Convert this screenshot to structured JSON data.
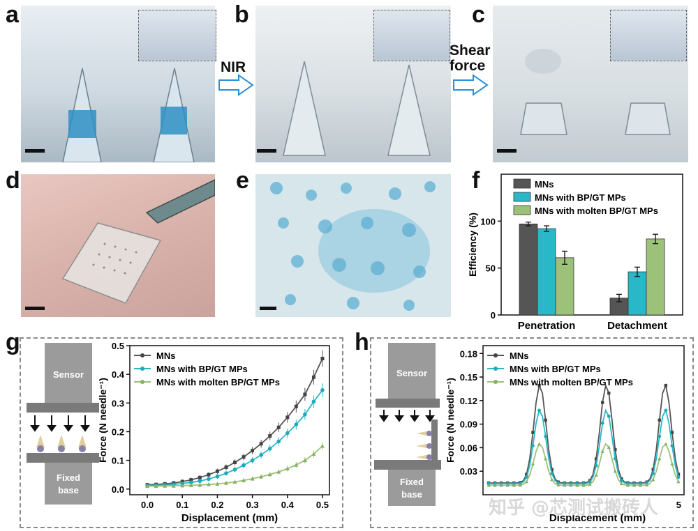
{
  "panels": {
    "a": "a",
    "b": "b",
    "c": "c",
    "d": "d",
    "e": "e",
    "f": "f",
    "g": "g",
    "h": "h"
  },
  "arrows": {
    "nir": "NIR",
    "shear_line1": "Shear",
    "shear_line2": "force"
  },
  "schematic": {
    "sensor": "Sensor",
    "fixed_line1": "Fixed",
    "fixed_line2": "base"
  },
  "watermark": "知乎 @芯测试搬砖人",
  "colors": {
    "mns": "#555555",
    "bpgt": "#29b8c8",
    "molten": "#9cc27a"
  },
  "chart_data": [
    {
      "id": "f",
      "type": "bar",
      "categories": [
        "Penetration",
        "Detachment"
      ],
      "series": [
        {
          "name": "MNs",
          "values": [
            97,
            18
          ],
          "errors": [
            2,
            4
          ]
        },
        {
          "name": "MNs with BP/GT MPs",
          "values": [
            92,
            46
          ],
          "errors": [
            3,
            5
          ]
        },
        {
          "name": "MNs with molten BP/GT MPs",
          "values": [
            61,
            81
          ],
          "errors": [
            7,
            5
          ]
        }
      ],
      "ylabel": "Efficiency (%)",
      "ylim": [
        0,
        150
      ],
      "yticks": [
        "0",
        "50",
        "100"
      ],
      "legend": "top-left"
    },
    {
      "id": "g",
      "type": "line",
      "xlabel": "Displacement (mm)",
      "ylabel": "Force (N needle⁻¹)",
      "xlim": [
        -0.05,
        0.52
      ],
      "ylim": [
        -0.02,
        0.5
      ],
      "xticks": [
        "0.0",
        "0.1",
        "0.2",
        "0.3",
        "0.4",
        "0.5"
      ],
      "yticks": [
        "0.0",
        "0.1",
        "0.2",
        "0.3",
        "0.4",
        "0.5"
      ],
      "x": [
        0.0,
        0.025,
        0.05,
        0.075,
        0.1,
        0.125,
        0.15,
        0.175,
        0.2,
        0.225,
        0.25,
        0.275,
        0.3,
        0.325,
        0.35,
        0.375,
        0.4,
        0.425,
        0.45,
        0.475,
        0.5
      ],
      "series": [
        {
          "name": "MNs",
          "values": [
            0.015,
            0.016,
            0.018,
            0.021,
            0.026,
            0.032,
            0.04,
            0.05,
            0.062,
            0.076,
            0.093,
            0.112,
            0.134,
            0.158,
            0.185,
            0.215,
            0.25,
            0.288,
            0.33,
            0.39,
            0.455
          ]
        },
        {
          "name": "MNs with BP/GT MPs",
          "values": [
            0.012,
            0.013,
            0.014,
            0.016,
            0.019,
            0.023,
            0.028,
            0.035,
            0.044,
            0.055,
            0.068,
            0.083,
            0.1,
            0.119,
            0.141,
            0.166,
            0.195,
            0.225,
            0.26,
            0.305,
            0.345
          ]
        },
        {
          "name": "MNs with molten BP/GT MPs",
          "values": [
            0.01,
            0.01,
            0.011,
            0.011,
            0.012,
            0.013,
            0.014,
            0.016,
            0.018,
            0.021,
            0.025,
            0.03,
            0.036,
            0.043,
            0.051,
            0.06,
            0.071,
            0.084,
            0.1,
            0.122,
            0.15
          ]
        }
      ],
      "legend": "top-left"
    },
    {
      "id": "h",
      "type": "line",
      "xlabel": "Displacement (mm)",
      "ylabel": "Force (N needle⁻¹)",
      "ylim": [
        0.0,
        0.19
      ],
      "yticks": [
        "0.03",
        "0.06",
        "0.09",
        "0.12",
        "0.15",
        "0.18"
      ],
      "xtick_visible": "5",
      "series": [
        {
          "name": "MNs",
          "peak": 0.14,
          "base": 0.015
        },
        {
          "name": "MNs with BP/GT MPs",
          "peak": 0.108,
          "base": 0.014
        },
        {
          "name": "MNs with molten BP/GT MPs",
          "peak": 0.065,
          "base": 0.012
        }
      ],
      "legend": "top-left"
    }
  ]
}
